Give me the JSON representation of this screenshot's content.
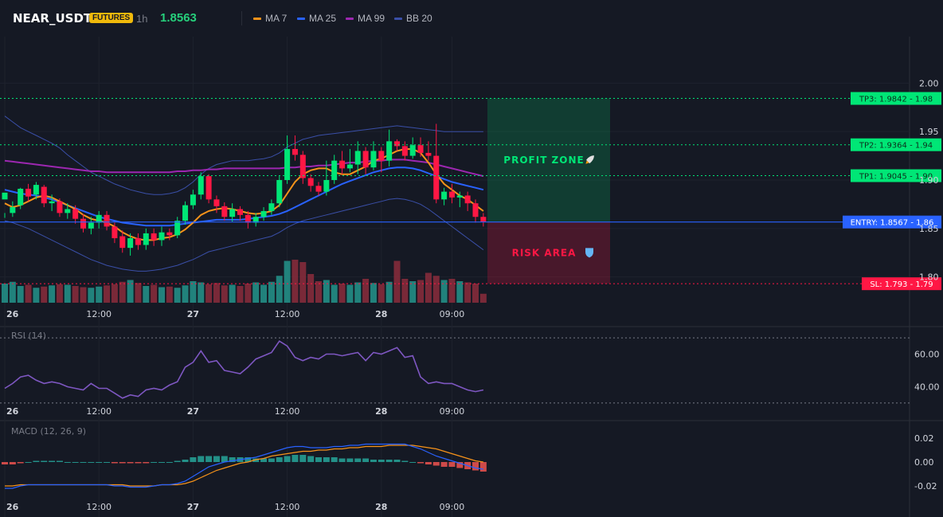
{
  "header": {
    "symbol": "NEAR_USDT",
    "badge": "FUTURES",
    "interval": "1h",
    "last_price": "1.8563",
    "legend": [
      {
        "label": "MA 7",
        "color": "#f7931a"
      },
      {
        "label": "MA 25",
        "color": "#2962ff"
      },
      {
        "label": "MA 99",
        "color": "#9c27b0"
      },
      {
        "label": "BB 20",
        "color": "#3a4fa8"
      }
    ]
  },
  "colors": {
    "up": "#26a69a",
    "up_bright": "#00e676",
    "down": "#ff1744",
    "down_dim": "#9b2f3f",
    "entry": "#2962ff",
    "tp": "#00e676",
    "sl": "#ff1744"
  },
  "chart_data": [
    {
      "type": "candlestick",
      "title": "NEAR_USDT",
      "ylim": [
        1.78,
        2.02
      ],
      "y_ticks": [
        "2.00",
        "1.95",
        "1.90",
        "1.85",
        "1.80"
      ],
      "x_ticks": [
        {
          "label": "26",
          "bold": true,
          "index": 0
        },
        {
          "label": "12:00",
          "bold": false,
          "index": 12
        },
        {
          "label": "27",
          "bold": true,
          "index": 24
        },
        {
          "label": "12:00",
          "bold": false,
          "index": 36
        },
        {
          "label": "28",
          "bold": true,
          "index": 48
        },
        {
          "label": "09:00",
          "bold": false,
          "index": 57
        }
      ],
      "candles": [
        [
          1.88,
          1.887,
          1.866,
          1.861
        ],
        [
          1.866,
          1.872,
          1.878,
          1.862
        ],
        [
          1.874,
          1.891,
          1.892,
          1.87
        ],
        [
          1.891,
          1.883,
          1.896,
          1.878
        ],
        [
          1.885,
          1.895,
          1.898,
          1.88
        ],
        [
          1.893,
          1.876,
          1.895,
          1.872
        ],
        [
          1.876,
          1.878,
          1.885,
          1.868
        ],
        [
          1.878,
          1.866,
          1.881,
          1.862
        ],
        [
          1.866,
          1.87,
          1.876,
          1.86
        ],
        [
          1.87,
          1.86,
          1.874,
          1.855
        ],
        [
          1.86,
          1.85,
          1.865,
          1.846
        ],
        [
          1.85,
          1.856,
          1.862,
          1.844
        ],
        [
          1.856,
          1.864,
          1.868,
          1.85
        ],
        [
          1.864,
          1.852,
          1.868,
          1.848
        ],
        [
          1.852,
          1.84,
          1.856,
          1.835
        ],
        [
          1.842,
          1.83,
          1.848,
          1.825
        ],
        [
          1.83,
          1.84,
          1.845,
          1.822
        ],
        [
          1.84,
          1.833,
          1.845,
          1.828
        ],
        [
          1.833,
          1.845,
          1.85,
          1.828
        ],
        [
          1.845,
          1.838,
          1.85,
          1.832
        ],
        [
          1.838,
          1.846,
          1.852,
          1.832
        ],
        [
          1.846,
          1.843,
          1.85,
          1.838
        ],
        [
          1.843,
          1.858,
          1.862,
          1.84
        ],
        [
          1.858,
          1.874,
          1.878,
          1.854
        ],
        [
          1.874,
          1.885,
          1.89,
          1.87
        ],
        [
          1.885,
          1.904,
          1.908,
          1.88
        ],
        [
          1.904,
          1.88,
          1.906,
          1.876
        ],
        [
          1.88,
          1.873,
          1.884,
          1.866
        ],
        [
          1.873,
          1.862,
          1.877,
          1.858
        ],
        [
          1.862,
          1.87,
          1.876,
          1.857
        ],
        [
          1.87,
          1.864,
          1.873,
          1.858
        ],
        [
          1.864,
          1.856,
          1.868,
          1.85
        ],
        [
          1.856,
          1.862,
          1.866,
          1.852
        ],
        [
          1.862,
          1.868,
          1.872,
          1.858
        ],
        [
          1.868,
          1.876,
          1.88,
          1.864
        ],
        [
          1.876,
          1.9,
          1.904,
          1.872
        ],
        [
          1.9,
          1.932,
          1.946,
          1.896
        ],
        [
          1.932,
          1.926,
          1.946,
          1.92
        ],
        [
          1.926,
          1.902,
          1.93,
          1.896
        ],
        [
          1.902,
          1.894,
          1.906,
          1.888
        ],
        [
          1.894,
          1.888,
          1.898,
          1.884
        ],
        [
          1.888,
          1.9,
          1.92,
          1.884
        ],
        [
          1.9,
          1.92,
          1.926,
          1.896
        ],
        [
          1.92,
          1.912,
          1.93,
          1.906
        ],
        [
          1.912,
          1.916,
          1.932,
          1.908
        ],
        [
          1.916,
          1.93,
          1.94,
          1.906
        ],
        [
          1.93,
          1.913,
          1.934,
          1.906
        ],
        [
          1.913,
          1.93,
          1.94,
          1.91
        ],
        [
          1.93,
          1.92,
          1.934,
          1.908
        ],
        [
          1.92,
          1.94,
          1.952,
          1.914
        ],
        [
          1.94,
          1.935,
          1.942,
          1.93
        ],
        [
          1.935,
          1.925,
          1.94,
          1.92
        ],
        [
          1.925,
          1.936,
          1.944,
          1.922
        ],
        [
          1.936,
          1.928,
          1.944,
          1.924
        ],
        [
          1.928,
          1.925,
          1.94,
          1.92
        ],
        [
          1.925,
          1.88,
          1.958,
          1.876
        ],
        [
          1.88,
          1.888,
          1.892,
          1.874
        ],
        [
          1.888,
          1.882,
          1.896,
          1.876
        ],
        [
          1.882,
          1.884,
          1.888,
          1.872
        ],
        [
          1.884,
          1.876,
          1.888,
          1.868
        ],
        [
          1.876,
          1.862,
          1.88,
          1.856
        ],
        [
          1.862,
          1.857,
          1.866,
          1.852
        ]
      ],
      "candle_format": "[open, close, high, low] — values estimated",
      "volume": [
        0.32,
        0.35,
        0.28,
        0.3,
        0.25,
        0.27,
        0.29,
        0.31,
        0.3,
        0.28,
        0.26,
        0.25,
        0.27,
        0.29,
        0.31,
        0.35,
        0.38,
        0.33,
        0.28,
        0.3,
        0.26,
        0.27,
        0.25,
        0.29,
        0.36,
        0.34,
        0.31,
        0.33,
        0.29,
        0.3,
        0.28,
        0.32,
        0.34,
        0.3,
        0.35,
        0.45,
        0.7,
        0.72,
        0.68,
        0.48,
        0.36,
        0.38,
        0.3,
        0.32,
        0.3,
        0.34,
        0.4,
        0.33,
        0.31,
        0.35,
        0.7,
        0.4,
        0.36,
        0.38,
        0.5,
        0.45,
        0.38,
        0.4,
        0.36,
        0.34,
        0.32,
        0.15
      ],
      "ma7": [
        1.876,
        1.872,
        1.874,
        1.878,
        1.882,
        1.884,
        1.882,
        1.878,
        1.874,
        1.87,
        1.864,
        1.86,
        1.858,
        1.856,
        1.852,
        1.846,
        1.842,
        1.839,
        1.838,
        1.838,
        1.84,
        1.841,
        1.844,
        1.849,
        1.856,
        1.864,
        1.868,
        1.87,
        1.871,
        1.87,
        1.868,
        1.866,
        1.865,
        1.866,
        1.868,
        1.874,
        1.886,
        1.898,
        1.906,
        1.91,
        1.912,
        1.912,
        1.908,
        1.906,
        1.906,
        1.91,
        1.914,
        1.92,
        1.922,
        1.926,
        1.93,
        1.932,
        1.932,
        1.928,
        1.918,
        1.906,
        1.896,
        1.89,
        1.884,
        1.88,
        1.874,
        1.868
      ],
      "ma25": [
        1.89,
        1.888,
        1.886,
        1.885,
        1.884,
        1.882,
        1.88,
        1.877,
        1.874,
        1.871,
        1.868,
        1.865,
        1.862,
        1.86,
        1.858,
        1.856,
        1.855,
        1.854,
        1.853,
        1.853,
        1.853,
        1.853,
        1.854,
        1.855,
        1.856,
        1.857,
        1.858,
        1.859,
        1.859,
        1.859,
        1.859,
        1.86,
        1.861,
        1.862,
        1.863,
        1.865,
        1.868,
        1.872,
        1.876,
        1.88,
        1.884,
        1.888,
        1.892,
        1.896,
        1.899,
        1.902,
        1.905,
        1.908,
        1.91,
        1.912,
        1.913,
        1.913,
        1.912,
        1.91,
        1.907,
        1.904,
        1.901,
        1.898,
        1.896,
        1.894,
        1.892,
        1.89
      ],
      "ma99": [
        1.92,
        1.919,
        1.918,
        1.917,
        1.916,
        1.915,
        1.914,
        1.913,
        1.912,
        1.911,
        1.91,
        1.909,
        1.909,
        1.908,
        1.908,
        1.908,
        1.908,
        1.908,
        1.908,
        1.908,
        1.908,
        1.908,
        1.909,
        1.909,
        1.91,
        1.91,
        1.911,
        1.911,
        1.912,
        1.912,
        1.912,
        1.912,
        1.912,
        1.912,
        1.912,
        1.912,
        1.913,
        1.913,
        1.914,
        1.914,
        1.915,
        1.915,
        1.916,
        1.917,
        1.918,
        1.918,
        1.919,
        1.92,
        1.92,
        1.921,
        1.921,
        1.921,
        1.92,
        1.919,
        1.918,
        1.916,
        1.914,
        1.912,
        1.91,
        1.908,
        1.906,
        1.904
      ],
      "bb_upper": [
        1.966,
        1.96,
        1.954,
        1.95,
        1.946,
        1.942,
        1.938,
        1.933,
        1.926,
        1.92,
        1.914,
        1.908,
        1.904,
        1.9,
        1.896,
        1.893,
        1.89,
        1.888,
        1.886,
        1.885,
        1.885,
        1.886,
        1.888,
        1.892,
        1.898,
        1.906,
        1.912,
        1.916,
        1.918,
        1.92,
        1.92,
        1.92,
        1.921,
        1.922,
        1.924,
        1.928,
        1.934,
        1.938,
        1.942,
        1.944,
        1.946,
        1.947,
        1.948,
        1.949,
        1.95,
        1.951,
        1.952,
        1.953,
        1.954,
        1.955,
        1.956,
        1.955,
        1.954,
        1.953,
        1.952,
        1.951,
        1.95,
        1.95,
        1.95,
        1.95,
        1.95,
        1.95
      ],
      "bb_lower": [
        1.858,
        1.856,
        1.853,
        1.85,
        1.846,
        1.842,
        1.838,
        1.834,
        1.83,
        1.826,
        1.822,
        1.818,
        1.815,
        1.812,
        1.81,
        1.808,
        1.807,
        1.806,
        1.806,
        1.807,
        1.808,
        1.81,
        1.812,
        1.815,
        1.818,
        1.822,
        1.826,
        1.828,
        1.83,
        1.832,
        1.834,
        1.836,
        1.838,
        1.84,
        1.842,
        1.846,
        1.851,
        1.855,
        1.858,
        1.86,
        1.862,
        1.864,
        1.866,
        1.868,
        1.87,
        1.872,
        1.874,
        1.876,
        1.878,
        1.88,
        1.881,
        1.88,
        1.878,
        1.875,
        1.87,
        1.864,
        1.858,
        1.852,
        1.846,
        1.84,
        1.834,
        1.828
      ],
      "levels": [
        {
          "label": "TP3: 1.9842 - 1.98",
          "value": 1.9842,
          "kind": "tp"
        },
        {
          "label": "TP2: 1.9364 - 1.94",
          "value": 1.9364,
          "kind": "tp"
        },
        {
          "label": "TP1: 1.9045 - 1.90",
          "value": 1.9045,
          "kind": "tp"
        },
        {
          "label": "ENTRY: 1.8567 - 1.86",
          "value": 1.8567,
          "kind": "entry"
        },
        {
          "label": "SL: 1.793 - 1.79",
          "value": 1.793,
          "kind": "sl"
        }
      ],
      "zones": [
        {
          "label": "PROFIT ZONE",
          "icon": "rocket-icon",
          "from": 1.8567,
          "to": 1.9842,
          "color": "#00e676"
        },
        {
          "label": "RISK AREA",
          "icon": "shield-icon",
          "from": 1.793,
          "to": 1.8567,
          "color": "#ff1744"
        }
      ]
    },
    {
      "type": "line",
      "title": "RSI (14)",
      "ylim": [
        28,
        72
      ],
      "y_ticks": [
        "60.00",
        "40.00"
      ],
      "bands": [
        70,
        30
      ],
      "values": [
        39,
        42,
        46,
        47,
        44,
        42,
        43,
        42,
        40,
        39,
        38,
        42,
        39,
        39,
        36,
        33,
        35,
        34,
        38,
        39,
        38,
        41,
        43,
        52,
        55,
        62,
        55,
        56,
        50,
        49,
        48,
        52,
        57,
        59,
        61,
        68,
        65,
        58,
        56,
        58,
        57,
        60,
        60,
        59,
        60,
        61,
        56,
        61,
        60,
        62,
        64,
        58,
        59,
        46,
        42,
        43,
        42,
        42,
        40,
        38,
        37,
        38
      ],
      "color": "#7e57c2"
    },
    {
      "type": "bar+line",
      "title": "MACD (12, 26, 9)",
      "ylim": [
        -0.03,
        0.03
      ],
      "y_ticks": [
        "0.02",
        "0.00",
        "-0.02"
      ],
      "histogram": [
        -0.002,
        -0.002,
        -0.001,
        0.0,
        0.001,
        0.001,
        0.001,
        0.001,
        0.0,
        0.0,
        0.0,
        0.0,
        0.0,
        0.0,
        -0.001,
        -0.001,
        -0.001,
        -0.001,
        -0.001,
        0.0,
        0.0,
        0.0,
        0.001,
        0.002,
        0.004,
        0.005,
        0.005,
        0.005,
        0.005,
        0.004,
        0.004,
        0.004,
        0.003,
        0.003,
        0.003,
        0.004,
        0.005,
        0.006,
        0.006,
        0.005,
        0.004,
        0.004,
        0.004,
        0.003,
        0.003,
        0.003,
        0.003,
        0.002,
        0.002,
        0.002,
        0.002,
        0.001,
        0.0,
        -0.001,
        -0.002,
        -0.003,
        -0.004,
        -0.004,
        -0.005,
        -0.006,
        -0.007,
        -0.008
      ],
      "macd": [
        -0.022,
        -0.022,
        -0.02,
        -0.019,
        -0.019,
        -0.019,
        -0.019,
        -0.019,
        -0.019,
        -0.019,
        -0.019,
        -0.019,
        -0.019,
        -0.019,
        -0.02,
        -0.02,
        -0.021,
        -0.021,
        -0.021,
        -0.02,
        -0.019,
        -0.019,
        -0.018,
        -0.016,
        -0.012,
        -0.008,
        -0.004,
        -0.002,
        0.0,
        0.001,
        0.002,
        0.003,
        0.004,
        0.006,
        0.008,
        0.01,
        0.012,
        0.013,
        0.013,
        0.012,
        0.012,
        0.012,
        0.013,
        0.013,
        0.014,
        0.014,
        0.015,
        0.015,
        0.015,
        0.015,
        0.015,
        0.015,
        0.013,
        0.011,
        0.008,
        0.005,
        0.003,
        0.001,
        -0.001,
        -0.003,
        -0.005,
        -0.006
      ],
      "signal": [
        -0.02,
        -0.02,
        -0.019,
        -0.019,
        -0.019,
        -0.019,
        -0.019,
        -0.019,
        -0.019,
        -0.019,
        -0.019,
        -0.019,
        -0.019,
        -0.019,
        -0.019,
        -0.019,
        -0.02,
        -0.02,
        -0.02,
        -0.02,
        -0.019,
        -0.019,
        -0.019,
        -0.018,
        -0.016,
        -0.013,
        -0.01,
        -0.007,
        -0.005,
        -0.003,
        -0.001,
        0.0,
        0.002,
        0.003,
        0.005,
        0.006,
        0.007,
        0.008,
        0.009,
        0.009,
        0.01,
        0.01,
        0.011,
        0.011,
        0.012,
        0.012,
        0.013,
        0.013,
        0.013,
        0.014,
        0.014,
        0.014,
        0.014,
        0.013,
        0.012,
        0.011,
        0.009,
        0.007,
        0.005,
        0.003,
        0.001,
        0.0
      ],
      "macd_color": "#2962ff",
      "signal_color": "#f7931a",
      "hist_up_color": "#26a69a",
      "hist_down_color": "#ef5350"
    }
  ]
}
